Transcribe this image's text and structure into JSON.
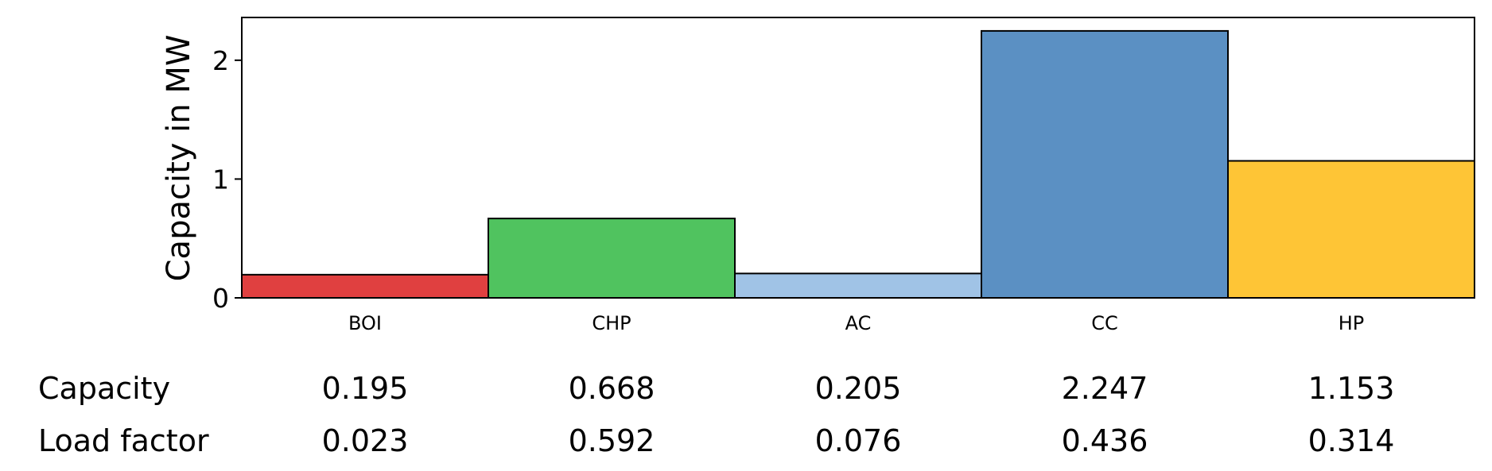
{
  "chart_data": {
    "type": "bar",
    "categories": [
      "BOI",
      "CHP",
      "AC",
      "CC",
      "HP"
    ],
    "values": [
      0.195,
      0.668,
      0.205,
      2.247,
      1.153
    ],
    "colors": [
      "#e04040",
      "#50c35f",
      "#a0c3e6",
      "#5b90c3",
      "#fec536"
    ],
    "ylabel": "Capacity in MW",
    "xlabel": "",
    "ylim": [
      0,
      2.36
    ],
    "yticks": [
      0,
      1,
      2
    ],
    "grid": false,
    "table": {
      "rows": [
        {
          "label": "Capacity",
          "values": [
            "0.195",
            "0.668",
            "0.205",
            "2.247",
            "1.153"
          ]
        },
        {
          "label": "Load factor",
          "values": [
            "0.023",
            "0.592",
            "0.076",
            "0.436",
            "0.314"
          ]
        }
      ]
    }
  }
}
